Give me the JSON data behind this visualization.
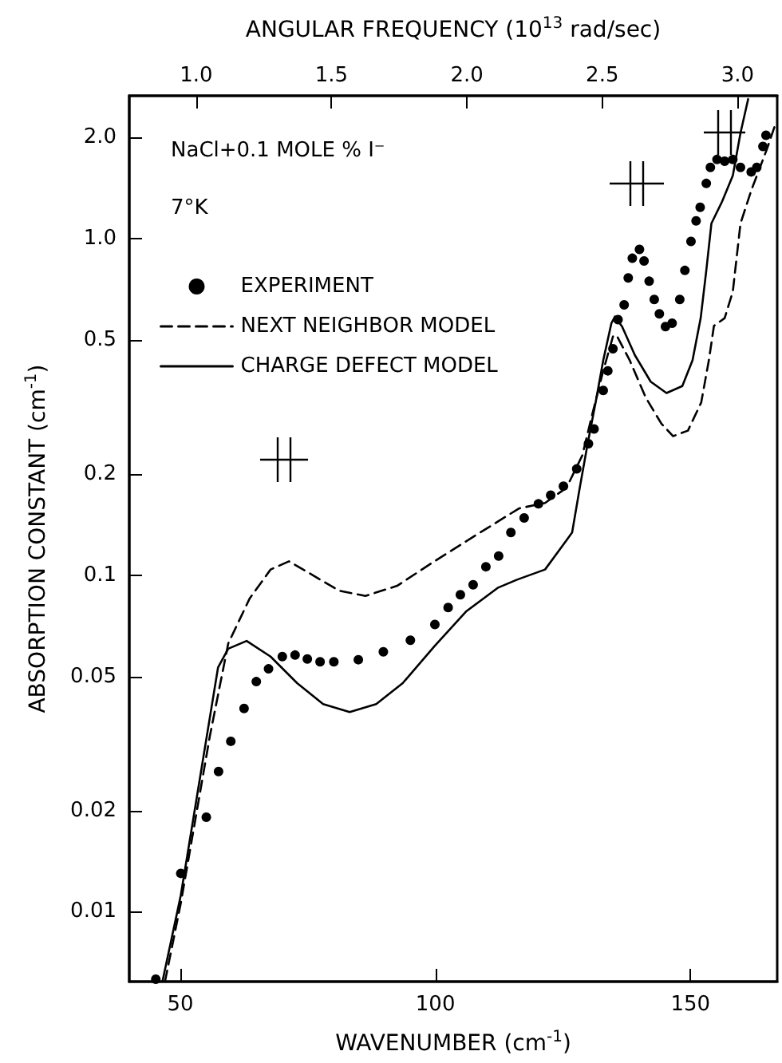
{
  "chart_data": {
    "type": "line",
    "xlabel": "WAVENUMBER (cm$^{-1}$)",
    "ylabel": "ABSORPTION CONSTANT (cm$^{-1}$)",
    "x2label": "ANGULAR FREQUENCY (10$^{13}$ rad/sec)",
    "annotations": [
      "NaCl+0.1 MOLE % I⁻",
      "7°K"
    ],
    "log": "y",
    "legend": "top left",
    "xlim": [
      40,
      167
    ],
    "xticks": [
      50,
      100,
      150
    ],
    "x2lim": [
      0.753,
      3.146
    ],
    "x2ticks": [
      {
        "value": 1,
        "label": "1.0"
      },
      1.5,
      {
        "value": 2,
        "label": "2.0"
      },
      2.5,
      {
        "value": 3,
        "label": "3.0"
      }
    ],
    "ylim": [
      0.0062,
      2.66
    ],
    "yticks": [
      0.01,
      0.02,
      0.05,
      0.1,
      0.2,
      0.5,
      {
        "value": 1,
        "label": "1.0"
      },
      {
        "value": 2,
        "label": "2.0"
      }
    ],
    "series": [
      {
        "name": "EXPERIMENT",
        "type": "scatter",
        "marker": "circle",
        "color": "#000000",
        "x": [
          45.2,
          50.1,
          55.1,
          57.5,
          59.9,
          62.5,
          64.9,
          67.3,
          70.0,
          72.5,
          74.9,
          77.4,
          80.1,
          84.9,
          89.8,
          95.1,
          99.9,
          102.5,
          104.9,
          107.4,
          109.9,
          112.4,
          114.8,
          117.4,
          120.2,
          122.6,
          125.1,
          127.7,
          130.0,
          131.1,
          132.9,
          133.8,
          134.8,
          135.8,
          137.0,
          137.8,
          138.6,
          140.0,
          140.9,
          141.9,
          142.9,
          143.9,
          145.1,
          146.4,
          147.9,
          148.9,
          150.1,
          151.1,
          151.9,
          153.1,
          153.9,
          155.2,
          156.7,
          158.3,
          159.8,
          161.9,
          163.0,
          164.2,
          164.8
        ],
        "values": [
          0.0063,
          0.013,
          0.0191,
          0.0261,
          0.0321,
          0.0402,
          0.0483,
          0.0527,
          0.0573,
          0.0579,
          0.0564,
          0.0553,
          0.0553,
          0.0561,
          0.0592,
          0.0641,
          0.0714,
          0.0802,
          0.0875,
          0.0937,
          0.106,
          0.114,
          0.134,
          0.148,
          0.163,
          0.173,
          0.184,
          0.207,
          0.246,
          0.272,
          0.354,
          0.405,
          0.471,
          0.575,
          0.636,
          0.765,
          0.875,
          0.93,
          0.859,
          0.748,
          0.66,
          0.598,
          0.548,
          0.561,
          0.66,
          0.805,
          0.982,
          1.13,
          1.24,
          1.46,
          1.63,
          1.72,
          1.7,
          1.72,
          1.63,
          1.58,
          1.63,
          1.88,
          2.03
        ]
      },
      {
        "name": "NEXT NEIGHBOR MODEL",
        "line_style": "dashed",
        "color": "#000000",
        "x": [
          47.0,
          50.1,
          55.8,
          59.4,
          63.6,
          67.7,
          71.3,
          76.0,
          81.1,
          86.3,
          92.5,
          99.8,
          108.1,
          116.4,
          121.5,
          125.7,
          128.8,
          130.8,
          132.9,
          134.8,
          135.5,
          138.1,
          141.2,
          144.3,
          146.6,
          149.5,
          152.1,
          153.6,
          154.6,
          156.7,
          158.3,
          159.8,
          161.9,
          165.0,
          166.6
        ],
        "values": [
          0.0062,
          0.0106,
          0.0333,
          0.0627,
          0.0853,
          0.104,
          0.11,
          0.1,
          0.09,
          0.0868,
          0.093,
          0.11,
          0.132,
          0.158,
          0.164,
          0.182,
          0.227,
          0.303,
          0.405,
          0.512,
          0.517,
          0.435,
          0.338,
          0.282,
          0.259,
          0.269,
          0.326,
          0.435,
          0.551,
          0.581,
          0.697,
          1.11,
          1.39,
          1.85,
          2.18
        ]
      },
      {
        "name": "CHARGE DEFECT MODEL",
        "line_style": "solid",
        "color": "#000000",
        "x": [
          46.5,
          50.1,
          57.4,
          59.4,
          63.0,
          67.7,
          72.9,
          78.0,
          83.2,
          88.4,
          93.6,
          99.8,
          106.0,
          112.2,
          116.0,
          121.5,
          125.7,
          126.8,
          128.3,
          129.8,
          131.4,
          132.9,
          134.5,
          135.2,
          136.6,
          139.1,
          142.2,
          145.3,
          148.4,
          150.4,
          152.0,
          153.1,
          154.1,
          156.2,
          158.3,
          159.8,
          161.3
        ],
        "values": [
          0.0062,
          0.0112,
          0.0532,
          0.0605,
          0.0638,
          0.0573,
          0.0478,
          0.0414,
          0.0392,
          0.0414,
          0.0478,
          0.0615,
          0.078,
          0.0917,
          0.097,
          0.104,
          0.127,
          0.134,
          0.182,
          0.244,
          0.326,
          0.435,
          0.561,
          0.587,
          0.548,
          0.451,
          0.376,
          0.348,
          0.365,
          0.435,
          0.581,
          0.805,
          1.11,
          1.29,
          1.54,
          2.06,
          2.6
        ]
      }
    ]
  }
}
